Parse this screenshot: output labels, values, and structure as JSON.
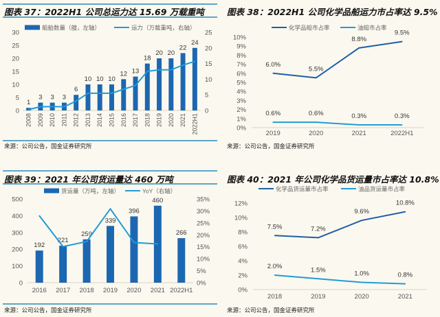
{
  "colors": {
    "bar": "#1c67b1",
    "line_light": "#1f9bd8",
    "line_dark": "#1f5ea6",
    "rule": "#5ba6c9",
    "background": "#fbf8ef"
  },
  "sources": [
    "来源：公司公告，国金证券研究所",
    "来源：公司公告，国金证券研究所",
    "来源：公司公告，国金证券研究所",
    "来源：公司公告，国金证券研究所"
  ],
  "chart_data": [
    {
      "type": "bar+line",
      "title": "图表 37：2022H1 公司总运力达 15.69 万载重吨",
      "categories": [
        "2008",
        "2009",
        "2010",
        "2011",
        "2012",
        "2013",
        "2014",
        "2015",
        "2016",
        "2017",
        "2018",
        "2019",
        "2020",
        "2021",
        "2022H1"
      ],
      "x_labels_rotated": true,
      "series": [
        {
          "name": "船舶数量（艘，左轴）",
          "kind": "bar",
          "axis": "left",
          "values": [
            1,
            3,
            3,
            3,
            6,
            10,
            10,
            10,
            12,
            13,
            18,
            20,
            20,
            22,
            24
          ],
          "labels": [
            "1",
            "3",
            "3",
            "3",
            "6",
            "10",
            "10",
            "10",
            "12",
            "13",
            "18",
            "20",
            "20",
            "22",
            "24"
          ]
        },
        {
          "name": "运力（万载重吨，右轴）",
          "kind": "line",
          "axis": "right",
          "values": [
            0.3,
            1.2,
            1.2,
            1.2,
            3,
            5.5,
            5.5,
            5.5,
            6.8,
            8,
            12.5,
            13,
            13,
            14.5,
            15.69
          ],
          "labels": []
        }
      ],
      "ylim_left": [
        0,
        30
      ],
      "y_ticks_left": [
        "0",
        "5",
        "10",
        "15",
        "20",
        "25",
        "30"
      ],
      "ylim_right": [
        0,
        25
      ],
      "y_ticks_right": [
        "0",
        "5",
        "10",
        "15",
        "20",
        "25"
      ],
      "legend": "top",
      "grid": false
    },
    {
      "type": "line",
      "title": "图表 38：2022H1 公司化学品船运力市占率达 9.5%",
      "categories": [
        "2019",
        "2020",
        "2021",
        "2022H1"
      ],
      "series": [
        {
          "name": "化学品船市占率",
          "kind": "line",
          "axis": "left",
          "values": [
            6.0,
            5.5,
            8.8,
            9.5
          ],
          "labels": [
            "6.0%",
            "5.5%",
            "8.8%",
            "9.5%"
          ]
        },
        {
          "name": "油船市占率",
          "kind": "line",
          "axis": "left",
          "values": [
            0.6,
            0.6,
            0.3,
            0.3
          ],
          "labels": [
            "0.6%",
            "0.6%",
            "0.3%",
            "0.3%"
          ]
        }
      ],
      "ylim_left": [
        0,
        10
      ],
      "y_ticks_left": [
        "0%",
        "1%",
        "2%",
        "3%",
        "4%",
        "5%",
        "6%",
        "7%",
        "8%",
        "9%",
        "10%"
      ],
      "legend": "top",
      "grid": false
    },
    {
      "type": "bar+line",
      "title": "图表 39：2021 年公司货运量达 460 万吨",
      "categories": [
        "2016",
        "2017",
        "2018",
        "2019",
        "2020",
        "2021",
        "2022H1"
      ],
      "series": [
        {
          "name": "货运量（万吨，左轴）",
          "kind": "bar",
          "axis": "left",
          "values": [
            192,
            221,
            259,
            339,
            396,
            460,
            266
          ],
          "labels": [
            "192",
            "221",
            "259",
            "339",
            "396",
            "460",
            "266"
          ]
        },
        {
          "name": "YoY（右轴）",
          "kind": "line",
          "axis": "right",
          "values": [
            28,
            15.1,
            17.2,
            30.9,
            16.8,
            16.2,
            null
          ],
          "labels": []
        }
      ],
      "ylim_left": [
        0,
        500
      ],
      "y_ticks_left": [
        "0",
        "100",
        "200",
        "300",
        "400",
        "500"
      ],
      "ylim_right": [
        0,
        35
      ],
      "y_ticks_right": [
        "0%",
        "5%",
        "10%",
        "15%",
        "20%",
        "25%",
        "30%",
        "35%"
      ],
      "legend": "top",
      "grid": false
    },
    {
      "type": "line",
      "title": "图表 40：2021 年公司化学品货运量市占率达 10.8%",
      "categories": [
        "2018",
        "2019",
        "2020",
        "2021"
      ],
      "series": [
        {
          "name": "化学品货运量市占率",
          "kind": "line",
          "axis": "left",
          "values": [
            7.5,
            7.2,
            9.6,
            10.8
          ],
          "labels": [
            "7.5%",
            "7.2%",
            "9.6%",
            "10.8%"
          ]
        },
        {
          "name": "油品货运量市占率",
          "kind": "line",
          "axis": "left",
          "values": [
            2.0,
            1.5,
            1.0,
            0.8
          ],
          "labels": [
            "2.0%",
            "1.5%",
            "1.0%",
            "0.8%"
          ]
        }
      ],
      "ylim_left": [
        0,
        12
      ],
      "y_ticks_left": [
        "0%",
        "2%",
        "4%",
        "6%",
        "8%",
        "10%",
        "12%"
      ],
      "legend": "top",
      "grid": false
    }
  ]
}
